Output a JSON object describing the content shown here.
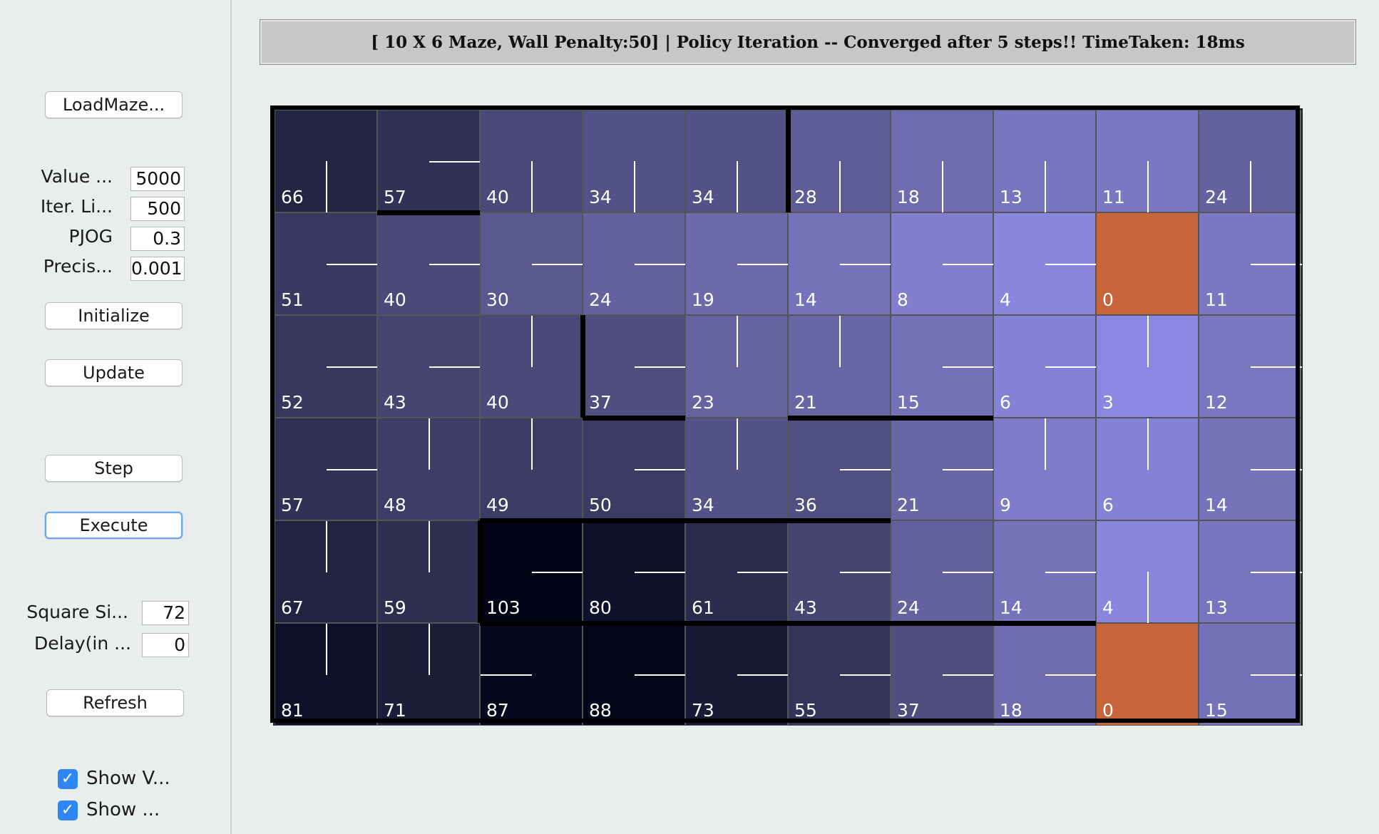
{
  "sidebar": {
    "load_maze": "LoadMaze...",
    "value_limit_label": "Value ...",
    "value_limit": "5000",
    "iter_limit_label": "Iter. Li...",
    "iter_limit": "500",
    "pjog_label": "PJOG",
    "pjog": "0.3",
    "precision_label": "Precis...",
    "precision": "0.001",
    "initialize": "Initialize",
    "update": "Update",
    "step": "Step",
    "execute": "Execute",
    "square_size_label": "Square Si...",
    "square_size": "72",
    "delay_label": "Delay(in ...",
    "delay": "0",
    "refresh": "Refresh",
    "show_values_label": "Show V...",
    "show_policy_label": "Show ...",
    "checkmark": "✓"
  },
  "status_text": "[ 10 X 6 Maze, Wall Penalty:50] |  Policy Iteration -- Converged after 5 steps!! TimeTaken: 18ms",
  "maze": {
    "cols": 10,
    "rows": 6,
    "goal_color": "#c8643a",
    "values": [
      [
        66,
        57,
        40,
        34,
        34,
        28,
        18,
        13,
        11,
        24
      ],
      [
        51,
        40,
        30,
        24,
        19,
        14,
        8,
        4,
        0,
        11
      ],
      [
        52,
        43,
        40,
        37,
        23,
        21,
        15,
        6,
        3,
        12
      ],
      [
        57,
        48,
        49,
        50,
        34,
        36,
        21,
        9,
        6,
        14
      ],
      [
        67,
        59,
        103,
        80,
        61,
        43,
        24,
        14,
        4,
        13
      ],
      [
        81,
        71,
        87,
        88,
        73,
        55,
        37,
        18,
        0,
        15
      ]
    ],
    "policy": [
      [
        "S",
        "E",
        "S",
        "S",
        "S",
        "S",
        "S",
        "S",
        "S",
        "S"
      ],
      [
        "E",
        "E",
        "E",
        "E",
        "E",
        "E",
        "E",
        "E",
        "G",
        "E"
      ],
      [
        "E",
        "E",
        "N",
        "E",
        "N",
        "N",
        "E",
        "E",
        "N",
        "E"
      ],
      [
        "E",
        "N",
        "N",
        "E",
        "N",
        "E",
        "E",
        "N",
        "N",
        "E"
      ],
      [
        "N",
        "N",
        "E",
        "E",
        "E",
        "E",
        "E",
        "E",
        "S",
        "E"
      ],
      [
        "N",
        "N",
        "W",
        "E",
        "E",
        "E",
        "E",
        "E",
        "G",
        "E"
      ]
    ],
    "goals": [
      [
        1,
        8
      ],
      [
        5,
        8
      ]
    ]
  }
}
